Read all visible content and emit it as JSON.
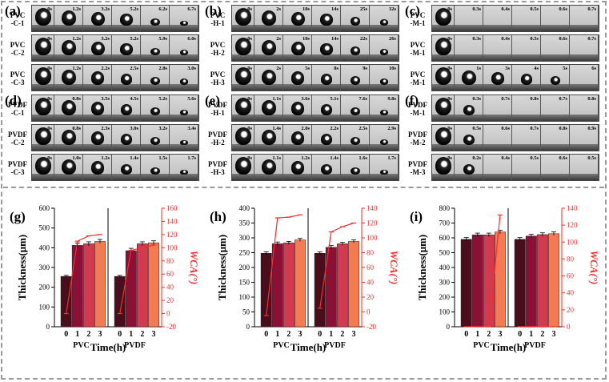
{
  "panels": [
    {
      "label": "(a)",
      "rows": [
        {
          "name": "PVC\n-C-1",
          "times": [
            "0s",
            "1.2s",
            "3.2s",
            "5.2s",
            "6.2s",
            "6.7s"
          ],
          "sizes": [
            1,
            0.85,
            0.75,
            0.6,
            0.3,
            0.1
          ]
        },
        {
          "name": "PVC\n-C-2",
          "times": [
            "0s",
            "1.2s",
            "3.2s",
            "5.2s",
            "5.9s",
            "6.0s"
          ],
          "sizes": [
            1,
            0.85,
            0.75,
            0.6,
            0.3,
            0.15
          ]
        },
        {
          "name": "PVC\n-C-3",
          "times": [
            "0s",
            "1.2s",
            "2.2s",
            "2.5s",
            "2.8s",
            "3.0s"
          ],
          "sizes": [
            1,
            0.85,
            0.7,
            0.55,
            0.35,
            0.2
          ]
        }
      ]
    },
    {
      "label": "(b)",
      "rows": [
        {
          "name": "PVC\n-H-1",
          "times": [
            "0s",
            "2s",
            "10s",
            "14s",
            "25s",
            "32s"
          ],
          "sizes": [
            1,
            0.85,
            0.75,
            0.6,
            0.4,
            0.2
          ]
        },
        {
          "name": "PVC\n-H-2",
          "times": [
            "0s",
            "2s",
            "10s",
            "14s",
            "22s",
            "26s"
          ],
          "sizes": [
            1,
            0.85,
            0.75,
            0.6,
            0.4,
            0.2
          ]
        },
        {
          "name": "PVC\n-H-3",
          "times": [
            "0s",
            "2s",
            "5s",
            "8s",
            "9s",
            "10s"
          ],
          "sizes": [
            1,
            0.85,
            0.7,
            0.55,
            0.4,
            0.2
          ]
        }
      ]
    },
    {
      "label": "(c)",
      "rows": [
        {
          "name": "PVC\n-M-1",
          "times": [
            "0s",
            "0.3s",
            "0.4s",
            "0.5s",
            "0.6s",
            "0.7s"
          ],
          "sizes": [
            1,
            0,
            0,
            0,
            0,
            0
          ]
        },
        {
          "name": "PVC\n-M-1",
          "times": [
            "0s",
            "0.3s",
            "0.4s",
            "0.5s",
            "0.6s",
            "0.7s"
          ],
          "sizes": [
            1,
            0,
            0,
            0,
            0,
            0
          ]
        },
        {
          "name": "PVC\n-M-1",
          "times": [
            "0s",
            "1s",
            "3s",
            "4s",
            "5s",
            "6s"
          ],
          "sizes": [
            1,
            0.8,
            0.65,
            0.55,
            0.4,
            0
          ]
        }
      ]
    },
    {
      "label": "(d)",
      "rows": [
        {
          "name": "PVDF\n-C-1",
          "times": [
            "0s",
            "0.8s",
            "3.5s",
            "4.5s",
            "5.2s",
            "5.6s"
          ],
          "sizes": [
            1,
            0.85,
            0.7,
            0.55,
            0.35,
            0.15
          ]
        },
        {
          "name": "PVDF\n-C-2",
          "times": [
            "0s",
            "0.8s",
            "2.3s",
            "3.0s",
            "3.2s",
            "3.4s"
          ],
          "sizes": [
            1,
            0.85,
            0.7,
            0.55,
            0.35,
            0.1
          ]
        },
        {
          "name": "PVDF\n-C-3",
          "times": [
            "0s",
            "1.0s",
            "1.2s",
            "1.4s",
            "1.5s",
            "1.7s"
          ],
          "sizes": [
            1,
            0.85,
            0.7,
            0.5,
            0.3,
            0.1
          ]
        }
      ]
    },
    {
      "label": "(e)",
      "rows": [
        {
          "name": "PVDF\n-H-1",
          "times": [
            "0s",
            "1.1s",
            "3.6s",
            "5.1s",
            "7.6s",
            "9.8s"
          ],
          "sizes": [
            1,
            0.85,
            0.7,
            0.55,
            0.35,
            0.15
          ]
        },
        {
          "name": "PVDF\n-H-2",
          "times": [
            "0s",
            "1.4s",
            "2.0s",
            "2.2s",
            "2.5s",
            "2.9s"
          ],
          "sizes": [
            1,
            0.85,
            0.7,
            0.55,
            0.35,
            0.15
          ]
        },
        {
          "name": "PVDF\n-H-3",
          "times": [
            "0s",
            "1.1s",
            "1.2s",
            "1.4s",
            "1.6s",
            "1.7s"
          ],
          "sizes": [
            1,
            0.85,
            0.7,
            0.5,
            0.3,
            0.1
          ]
        }
      ]
    },
    {
      "label": "(f)",
      "rows": [
        {
          "name": "PVDF\n-M-1",
          "times": [
            "0s",
            "0.3s",
            "0.7s",
            "0.8s",
            "0.7s",
            "0.8s"
          ],
          "sizes": [
            1,
            0.5,
            0,
            0,
            0,
            0
          ]
        },
        {
          "name": "PVDF\n-M-2",
          "times": [
            "0s",
            "0.5s",
            "0.6s",
            "0.7s",
            "0.8s",
            "0.9s"
          ],
          "sizes": [
            1,
            0.5,
            0,
            0,
            0,
            0
          ]
        },
        {
          "name": "PVDF\n-M-3",
          "times": [
            "0s",
            "0.2s",
            "0.4s",
            "0.5s",
            "0.6s",
            "0.5s"
          ],
          "sizes": [
            1,
            0.5,
            0,
            0,
            0,
            0
          ]
        }
      ]
    }
  ],
  "chart_data": [
    {
      "type": "bar",
      "panel_label": "(g)",
      "ylabel": "Thickness(μm)",
      "y2label": "WCA(°)",
      "xlabel": "Time(h)",
      "groups": [
        "PVC",
        "PVDF"
      ],
      "categories": [
        "0",
        "1",
        "2",
        "3"
      ],
      "ylim": [
        0,
        600
      ],
      "yticks": [
        0,
        100,
        200,
        300,
        400,
        500,
        600
      ],
      "y2lim": [
        -20,
        160
      ],
      "y2ticks": [
        -20,
        0,
        20,
        40,
        60,
        80,
        100,
        120,
        140,
        160
      ],
      "thickness": [
        [
          255,
          412,
          420,
          432
        ],
        [
          255,
          385,
          420,
          425
        ]
      ],
      "thickness_err": [
        [
          5,
          12,
          10,
          10
        ],
        [
          5,
          12,
          10,
          10
        ]
      ],
      "wca": [
        [
          0,
          110,
          118,
          120
        ],
        [
          0,
          96,
          100,
          104
        ]
      ]
    },
    {
      "type": "bar",
      "panel_label": "(h)",
      "ylabel": "Thickness(μm)",
      "y2label": "WCA(°)",
      "xlabel": "Time(h)",
      "groups": [
        "PVC",
        "PVDF"
      ],
      "categories": [
        "0",
        "1",
        "2",
        "3"
      ],
      "ylim": [
        0,
        400
      ],
      "yticks": [
        0,
        50,
        100,
        150,
        200,
        250,
        300,
        350,
        400
      ],
      "y2lim": [
        -20,
        140
      ],
      "y2ticks": [
        -20,
        0,
        20,
        40,
        60,
        80,
        100,
        120,
        140
      ],
      "thickness": [
        [
          248,
          280,
          283,
          293
        ],
        [
          248,
          268,
          280,
          288
        ]
      ],
      "thickness_err": [
        [
          5,
          6,
          5,
          5
        ],
        [
          5,
          6,
          5,
          5
        ]
      ],
      "wca": [
        [
          -5,
          127,
          128,
          131
        ],
        [
          5,
          108,
          115,
          120
        ]
      ]
    },
    {
      "type": "bar",
      "panel_label": "(i)",
      "ylabel": "Thickness(μm)",
      "y2label": "WCA(°)",
      "xlabel": "Time(h)",
      "groups": [
        "PVC",
        "PVDF"
      ],
      "categories": [
        "0",
        "1",
        "2",
        "3"
      ],
      "ylim": [
        0,
        800
      ],
      "yticks": [
        0,
        100,
        200,
        300,
        400,
        500,
        600,
        700,
        800
      ],
      "y2lim": [
        0,
        140
      ],
      "y2ticks": [
        0,
        20,
        40,
        60,
        80,
        100,
        120,
        140
      ],
      "thickness": [
        [
          590,
          620,
          620,
          640
        ],
        [
          590,
          612,
          622,
          628
        ]
      ],
      "thickness_err": [
        [
          12,
          12,
          12,
          12
        ],
        [
          12,
          12,
          12,
          12
        ]
      ],
      "wca": [
        [
          0,
          0,
          0,
          132
        ],
        [
          0,
          0,
          0,
          0
        ]
      ]
    }
  ],
  "colors": {
    "bars": [
      "#4a0d1c",
      "#8c0f35",
      "#d13a4f",
      "#f47a52"
    ],
    "wca": "#ff2a2a"
  }
}
